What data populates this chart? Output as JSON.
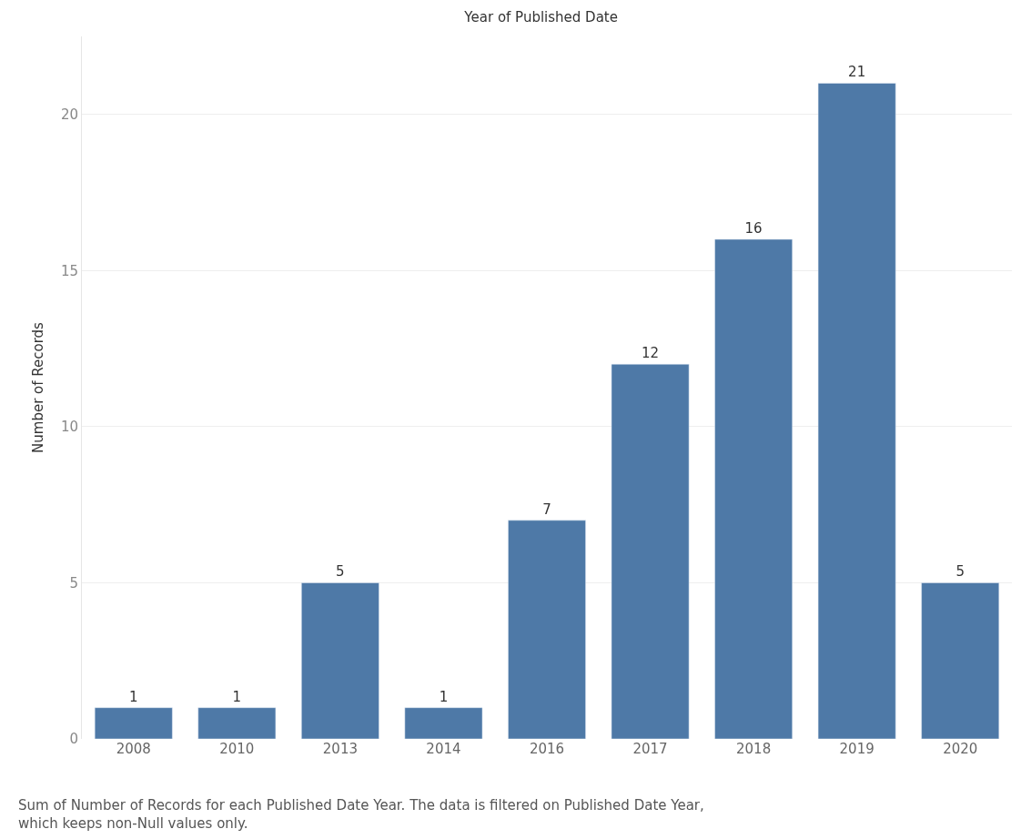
{
  "chart_data": {
    "type": "bar",
    "title": "Year of Published Date",
    "ylabel": "Number of Records",
    "categories": [
      "2008",
      "2010",
      "2013",
      "2014",
      "2016",
      "2017",
      "2018",
      "2019",
      "2020"
    ],
    "values": [
      1,
      1,
      5,
      1,
      7,
      12,
      16,
      21,
      5
    ],
    "color": "#4e79a7",
    "ylim": [
      0,
      22.5
    ],
    "yticks": [
      0,
      5,
      10,
      15,
      20
    ],
    "grid": "y",
    "data_labels": true,
    "annotations": [
      "Sum of Number of Records for each Published Date Year. The data is filtered on Published Date Year,\nwhich keeps non-Null values only."
    ]
  }
}
